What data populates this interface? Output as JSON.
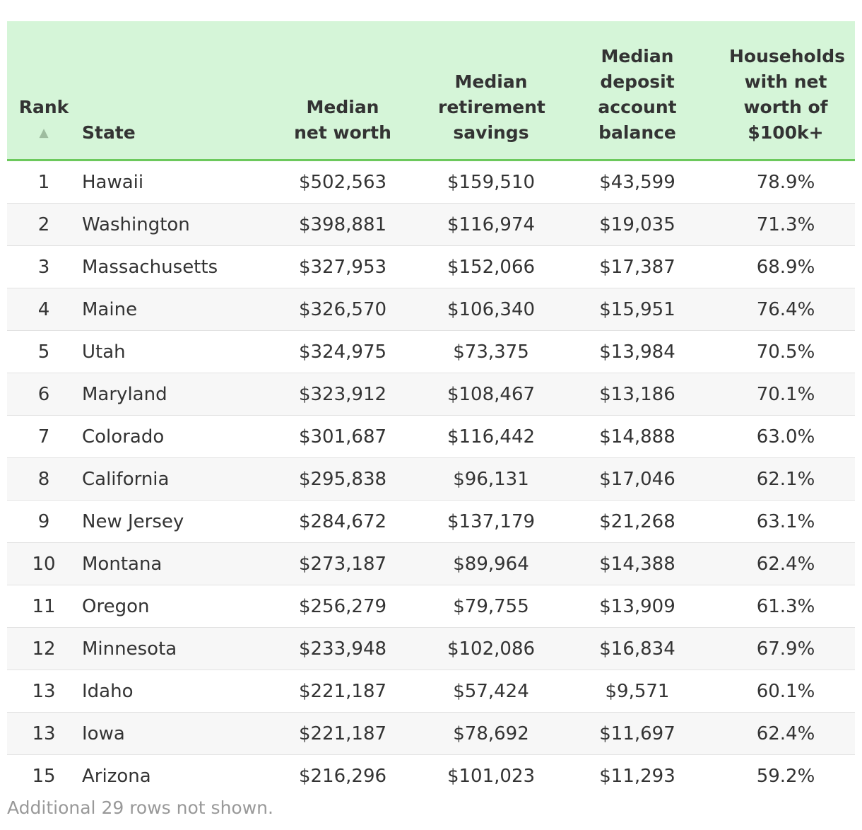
{
  "table": {
    "headers": {
      "rank": "Rank",
      "rank_sort_icon": "sort-ascending-icon",
      "state": "State",
      "net_worth": "Median net worth",
      "retirement": "Median retirement savings",
      "deposit": "Median deposit account balance",
      "households": "Households with net worth of $100k+"
    },
    "rows": [
      {
        "rank": "1",
        "state": "Hawaii",
        "net_worth": "$502,563",
        "retirement": "$159,510",
        "deposit": "$43,599",
        "households": "78.9%"
      },
      {
        "rank": "2",
        "state": "Washington",
        "net_worth": "$398,881",
        "retirement": "$116,974",
        "deposit": "$19,035",
        "households": "71.3%"
      },
      {
        "rank": "3",
        "state": "Massachusetts",
        "net_worth": "$327,953",
        "retirement": "$152,066",
        "deposit": "$17,387",
        "households": "68.9%"
      },
      {
        "rank": "4",
        "state": "Maine",
        "net_worth": "$326,570",
        "retirement": "$106,340",
        "deposit": "$15,951",
        "households": "76.4%"
      },
      {
        "rank": "5",
        "state": "Utah",
        "net_worth": "$324,975",
        "retirement": "$73,375",
        "deposit": "$13,984",
        "households": "70.5%"
      },
      {
        "rank": "6",
        "state": "Maryland",
        "net_worth": "$323,912",
        "retirement": "$108,467",
        "deposit": "$13,186",
        "households": "70.1%"
      },
      {
        "rank": "7",
        "state": "Colorado",
        "net_worth": "$301,687",
        "retirement": "$116,442",
        "deposit": "$14,888",
        "households": "63.0%"
      },
      {
        "rank": "8",
        "state": "California",
        "net_worth": "$295,838",
        "retirement": "$96,131",
        "deposit": "$17,046",
        "households": "62.1%"
      },
      {
        "rank": "9",
        "state": "New Jersey",
        "net_worth": "$284,672",
        "retirement": "$137,179",
        "deposit": "$21,268",
        "households": "63.1%"
      },
      {
        "rank": "10",
        "state": "Montana",
        "net_worth": "$273,187",
        "retirement": "$89,964",
        "deposit": "$14,388",
        "households": "62.4%"
      },
      {
        "rank": "11",
        "state": "Oregon",
        "net_worth": "$256,279",
        "retirement": "$79,755",
        "deposit": "$13,909",
        "households": "61.3%"
      },
      {
        "rank": "12",
        "state": "Minnesota",
        "net_worth": "$233,948",
        "retirement": "$102,086",
        "deposit": "$16,834",
        "households": "67.9%"
      },
      {
        "rank": "13",
        "state": "Idaho",
        "net_worth": "$221,187",
        "retirement": "$57,424",
        "deposit": "$9,571",
        "households": "60.1%"
      },
      {
        "rank": "13",
        "state": "Iowa",
        "net_worth": "$221,187",
        "retirement": "$78,692",
        "deposit": "$11,697",
        "households": "62.4%"
      },
      {
        "rank": "15",
        "state": "Arizona",
        "net_worth": "$216,296",
        "retirement": "$101,023",
        "deposit": "$11,293",
        "households": "59.2%"
      }
    ],
    "footnote": "Additional 29 rows not shown."
  },
  "colors": {
    "header_bg": "#d5f5d8",
    "header_border": "#6cc95c",
    "stripe_bg": "#f7f7f7",
    "text": "#333333",
    "muted": "#999999"
  }
}
